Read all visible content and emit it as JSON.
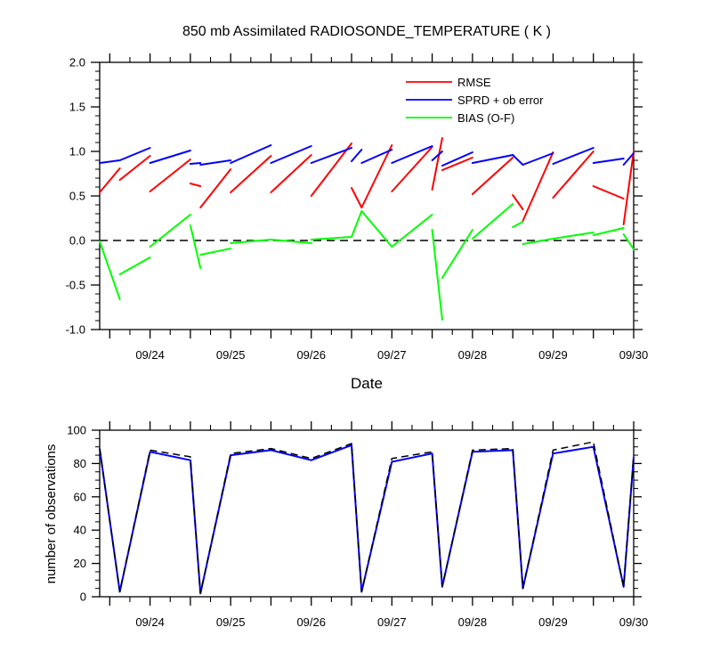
{
  "colors": {
    "rmse": "#ff0000",
    "sprd": "#0000ff",
    "bias": "#00ff00",
    "obs_used": "#0000ff",
    "obs_possible": "#000000",
    "zero_line": "#000000",
    "axes": "#000000"
  },
  "chart_data": [
    {
      "type": "line",
      "title": "850 mb Assimilated RADIOSONDE_TEMPERATURE ( K )",
      "xlabel": "Date",
      "ylabel": "",
      "xlim": [
        "09/23 09:00",
        "09/30 00:00"
      ],
      "ylim": [
        -1.0,
        2.0
      ],
      "yticks": [
        "-1.0",
        "-0.5",
        "0.0",
        "0.5",
        "1.0",
        "1.5",
        "2.0"
      ],
      "xticks": [
        "09/24",
        "09/25",
        "09/26",
        "09/27",
        "09/28",
        "09/29",
        "09/30"
      ],
      "legend_position": "top-right",
      "reference_line": {
        "y": 0.0,
        "style": "dashed"
      },
      "x": [
        "09/23 09:00",
        "09/23 15:00",
        "09/24 00:00",
        "09/24 12:00",
        "09/24 15:00",
        "09/25 00:00",
        "09/25 12:00",
        "09/26 00:00",
        "09/26 12:00",
        "09/26 15:00",
        "09/27 00:00",
        "09/27 12:00",
        "09/27 15:00",
        "09/28 00:00",
        "09/28 12:00",
        "09/28 15:00",
        "09/29 00:00",
        "09/29 12:00",
        "09/29 21:00",
        "09/30 00:00"
      ],
      "series": [
        {
          "name": "RMSE",
          "color": "#ff0000",
          "segments": [
            [
              [
                0,
                0.54
              ],
              [
                1,
                0.81
              ]
            ],
            [
              [
                1,
                0.68
              ],
              [
                2,
                0.95
              ]
            ],
            [
              [
                2,
                0.55
              ],
              [
                3,
                0.91
              ]
            ],
            [
              [
                3,
                0.64
              ],
              [
                4,
                0.61
              ]
            ],
            [
              [
                4,
                0.37
              ],
              [
                5,
                0.8
              ]
            ],
            [
              [
                5,
                0.54
              ],
              [
                6,
                0.95
              ]
            ],
            [
              [
                6,
                0.54
              ],
              [
                7,
                0.96
              ]
            ],
            [
              [
                7,
                0.5
              ],
              [
                8,
                1.09
              ]
            ],
            [
              [
                8,
                0.59
              ],
              [
                9,
                0.37
              ]
            ],
            [
              [
                9,
                0.37
              ],
              [
                10,
                1.07
              ]
            ],
            [
              [
                10,
                0.55
              ],
              [
                11,
                1.05
              ]
            ],
            [
              [
                11,
                0.57
              ],
              [
                12,
                1.15
              ]
            ],
            [
              [
                12,
                0.79
              ],
              [
                13,
                0.93
              ]
            ],
            [
              [
                13,
                0.52
              ],
              [
                14,
                0.93
              ]
            ],
            [
              [
                14,
                0.51
              ],
              [
                15,
                0.35
              ]
            ],
            [
              [
                15,
                0.22
              ],
              [
                16,
                0.99
              ]
            ],
            [
              [
                16,
                0.48
              ],
              [
                17,
                1.0
              ]
            ],
            [
              [
                17,
                0.61
              ],
              [
                18,
                0.47
              ]
            ],
            [
              [
                18,
                0.18
              ],
              [
                19,
                1.0
              ]
            ]
          ]
        },
        {
          "name": "SPRD + ob error",
          "color": "#0000ff",
          "segments": [
            [
              [
                0,
                0.87
              ],
              [
                1,
                0.9
              ]
            ],
            [
              [
                1,
                0.9
              ],
              [
                2,
                1.04
              ]
            ],
            [
              [
                2,
                0.87
              ],
              [
                3,
                1.01
              ]
            ],
            [
              [
                3,
                0.86
              ],
              [
                4,
                0.87
              ]
            ],
            [
              [
                4,
                0.85
              ],
              [
                5,
                0.9
              ]
            ],
            [
              [
                5,
                0.87
              ],
              [
                6,
                1.07
              ]
            ],
            [
              [
                6,
                0.87
              ],
              [
                7,
                1.06
              ]
            ],
            [
              [
                7,
                0.87
              ],
              [
                8,
                1.04
              ]
            ],
            [
              [
                8,
                0.89
              ],
              [
                9,
                1.02
              ]
            ],
            [
              [
                9,
                0.87
              ],
              [
                10,
                1.02
              ]
            ],
            [
              [
                10,
                0.87
              ],
              [
                11,
                1.06
              ]
            ],
            [
              [
                11,
                0.9
              ],
              [
                12,
                1.0
              ]
            ],
            [
              [
                12,
                0.84
              ],
              [
                13,
                0.99
              ]
            ],
            [
              [
                13,
                0.87
              ],
              [
                14,
                0.96
              ]
            ],
            [
              [
                14,
                0.96
              ],
              [
                15,
                0.85
              ]
            ],
            [
              [
                15,
                0.85
              ],
              [
                16,
                0.98
              ]
            ],
            [
              [
                16,
                0.86
              ],
              [
                17,
                1.04
              ]
            ],
            [
              [
                17,
                0.87
              ],
              [
                18,
                0.92
              ]
            ],
            [
              [
                18,
                0.85
              ],
              [
                19,
                0.98
              ]
            ]
          ]
        },
        {
          "name": "BIAS (O-F)",
          "color": "#00ff00",
          "segments": [
            [
              [
                0,
                -0.01
              ],
              [
                1,
                -0.66
              ]
            ],
            [
              [
                1,
                -0.38
              ],
              [
                2,
                -0.19
              ]
            ],
            [
              [
                2,
                -0.07
              ],
              [
                3,
                0.29
              ]
            ],
            [
              [
                3,
                0.17
              ],
              [
                4,
                -0.31
              ]
            ],
            [
              [
                4,
                -0.16
              ],
              [
                5,
                -0.09
              ]
            ],
            [
              [
                5,
                -0.03
              ],
              [
                6,
                0.01
              ]
            ],
            [
              [
                6,
                0.01
              ],
              [
                7,
                -0.03
              ]
            ],
            [
              [
                7,
                0.01
              ],
              [
                8,
                0.04
              ]
            ],
            [
              [
                8,
                0.04
              ],
              [
                9,
                0.33
              ]
            ],
            [
              [
                9,
                0.33
              ],
              [
                10,
                -0.07
              ]
            ],
            [
              [
                10,
                -0.07
              ],
              [
                11,
                0.29
              ]
            ],
            [
              [
                11,
                0.12
              ],
              [
                12,
                -0.89
              ]
            ],
            [
              [
                12,
                -0.42
              ],
              [
                13,
                0.12
              ]
            ],
            [
              [
                13,
                0.02
              ],
              [
                14,
                0.41
              ]
            ],
            [
              [
                14,
                0.15
              ],
              [
                15,
                0.21
              ]
            ],
            [
              [
                15,
                -0.04
              ],
              [
                16,
                0.02
              ]
            ],
            [
              [
                16,
                0.02
              ],
              [
                17,
                0.09
              ]
            ],
            [
              [
                17,
                0.06
              ],
              [
                18,
                0.14
              ]
            ],
            [
              [
                18,
                0.07
              ],
              [
                19,
                -0.1
              ]
            ]
          ]
        }
      ]
    },
    {
      "type": "line",
      "title": "",
      "xlabel": "",
      "ylabel": "number of observations",
      "xlim": [
        "09/23 09:00",
        "09/30 00:00"
      ],
      "ylim": [
        0,
        100
      ],
      "yticks": [
        "0",
        "20",
        "40",
        "60",
        "80",
        "100"
      ],
      "xticks": [
        "09/24",
        "09/25",
        "09/26",
        "09/27",
        "09/28",
        "09/29",
        "09/30"
      ],
      "x": [
        "09/23 09:00",
        "09/23 15:00",
        "09/24 00:00",
        "09/24 12:00",
        "09/24 15:00",
        "09/25 00:00",
        "09/25 12:00",
        "09/26 00:00",
        "09/26 12:00",
        "09/26 15:00",
        "09/27 00:00",
        "09/27 12:00",
        "09/27 15:00",
        "09/28 00:00",
        "09/28 12:00",
        "09/28 15:00",
        "09/29 00:00",
        "09/29 12:00",
        "09/29 21:00",
        "09/30 00:00"
      ],
      "series": [
        {
          "color": "#0000ff",
          "style": "solid",
          "values": [
            89,
            3,
            87,
            82,
            2,
            85,
            88,
            82,
            91,
            3,
            81,
            86,
            6,
            87,
            88,
            5,
            86,
            90,
            6,
            84
          ]
        },
        {
          "color": "#000000",
          "style": "dashed",
          "values": [
            89,
            3,
            88,
            84,
            2,
            86,
            89,
            83,
            92,
            3,
            83,
            87,
            6,
            88,
            89,
            5,
            88,
            93,
            6,
            85
          ]
        }
      ]
    }
  ]
}
